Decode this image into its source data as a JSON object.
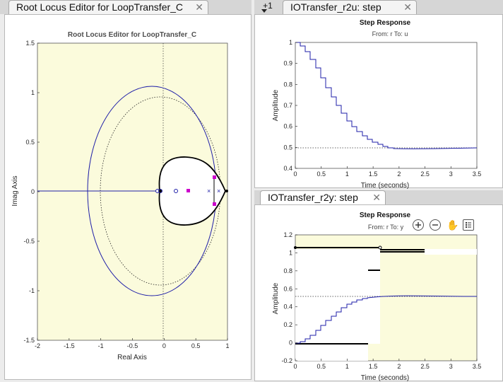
{
  "tabs": {
    "left": {
      "label": "Root Locus Editor for LoopTransfer_C"
    },
    "overflow": "+1",
    "top_right": {
      "label": "IOTransfer_r2u: step"
    },
    "bottom_right": {
      "label": "IOTransfer_r2y: step"
    }
  },
  "root_locus": {
    "title": "Root Locus Editor for LoopTransfer_C",
    "xlabel": "Real Axis",
    "ylabel": "Imag Axis",
    "xticks": [
      "-2",
      "-1.5",
      "-1",
      "-0.5",
      "0",
      "0.5",
      "1"
    ],
    "yticks": [
      "1.5",
      "1",
      "0.5",
      "0",
      "-0.5",
      "-1",
      "-1.5"
    ]
  },
  "step_r2u": {
    "title": "Step Response",
    "from_to": "From: r  To: u",
    "xlabel": "Time (seconds)",
    "ylabel": "Amplitude",
    "xticks": [
      "0",
      "0.5",
      "1",
      "1.5",
      "2",
      "2.5",
      "3",
      "3.5"
    ],
    "yticks": [
      "1",
      "0.9",
      "0.8",
      "0.7",
      "0.6",
      "0.5",
      "0.4"
    ]
  },
  "step_r2y": {
    "title": "Step Response",
    "from_to": "From: r  To: y",
    "xlabel": "Time (seconds)",
    "ylabel": "Amplitude",
    "xticks": [
      "0",
      "0.5",
      "1",
      "1.5",
      "2",
      "2.5",
      "3",
      "3.5"
    ],
    "yticks": [
      "1.2",
      "1",
      "0.8",
      "0.6",
      "0.4",
      "0.2",
      "0",
      "-0.2"
    ]
  },
  "toolbar": [
    "zoom-in-icon",
    "zoom-out-icon",
    "pan-hand-icon",
    "legend-icon"
  ],
  "colors": {
    "locus": "#1f1fa8",
    "design_bg": "#fbfbdc",
    "marker": "#cc00cc"
  }
}
